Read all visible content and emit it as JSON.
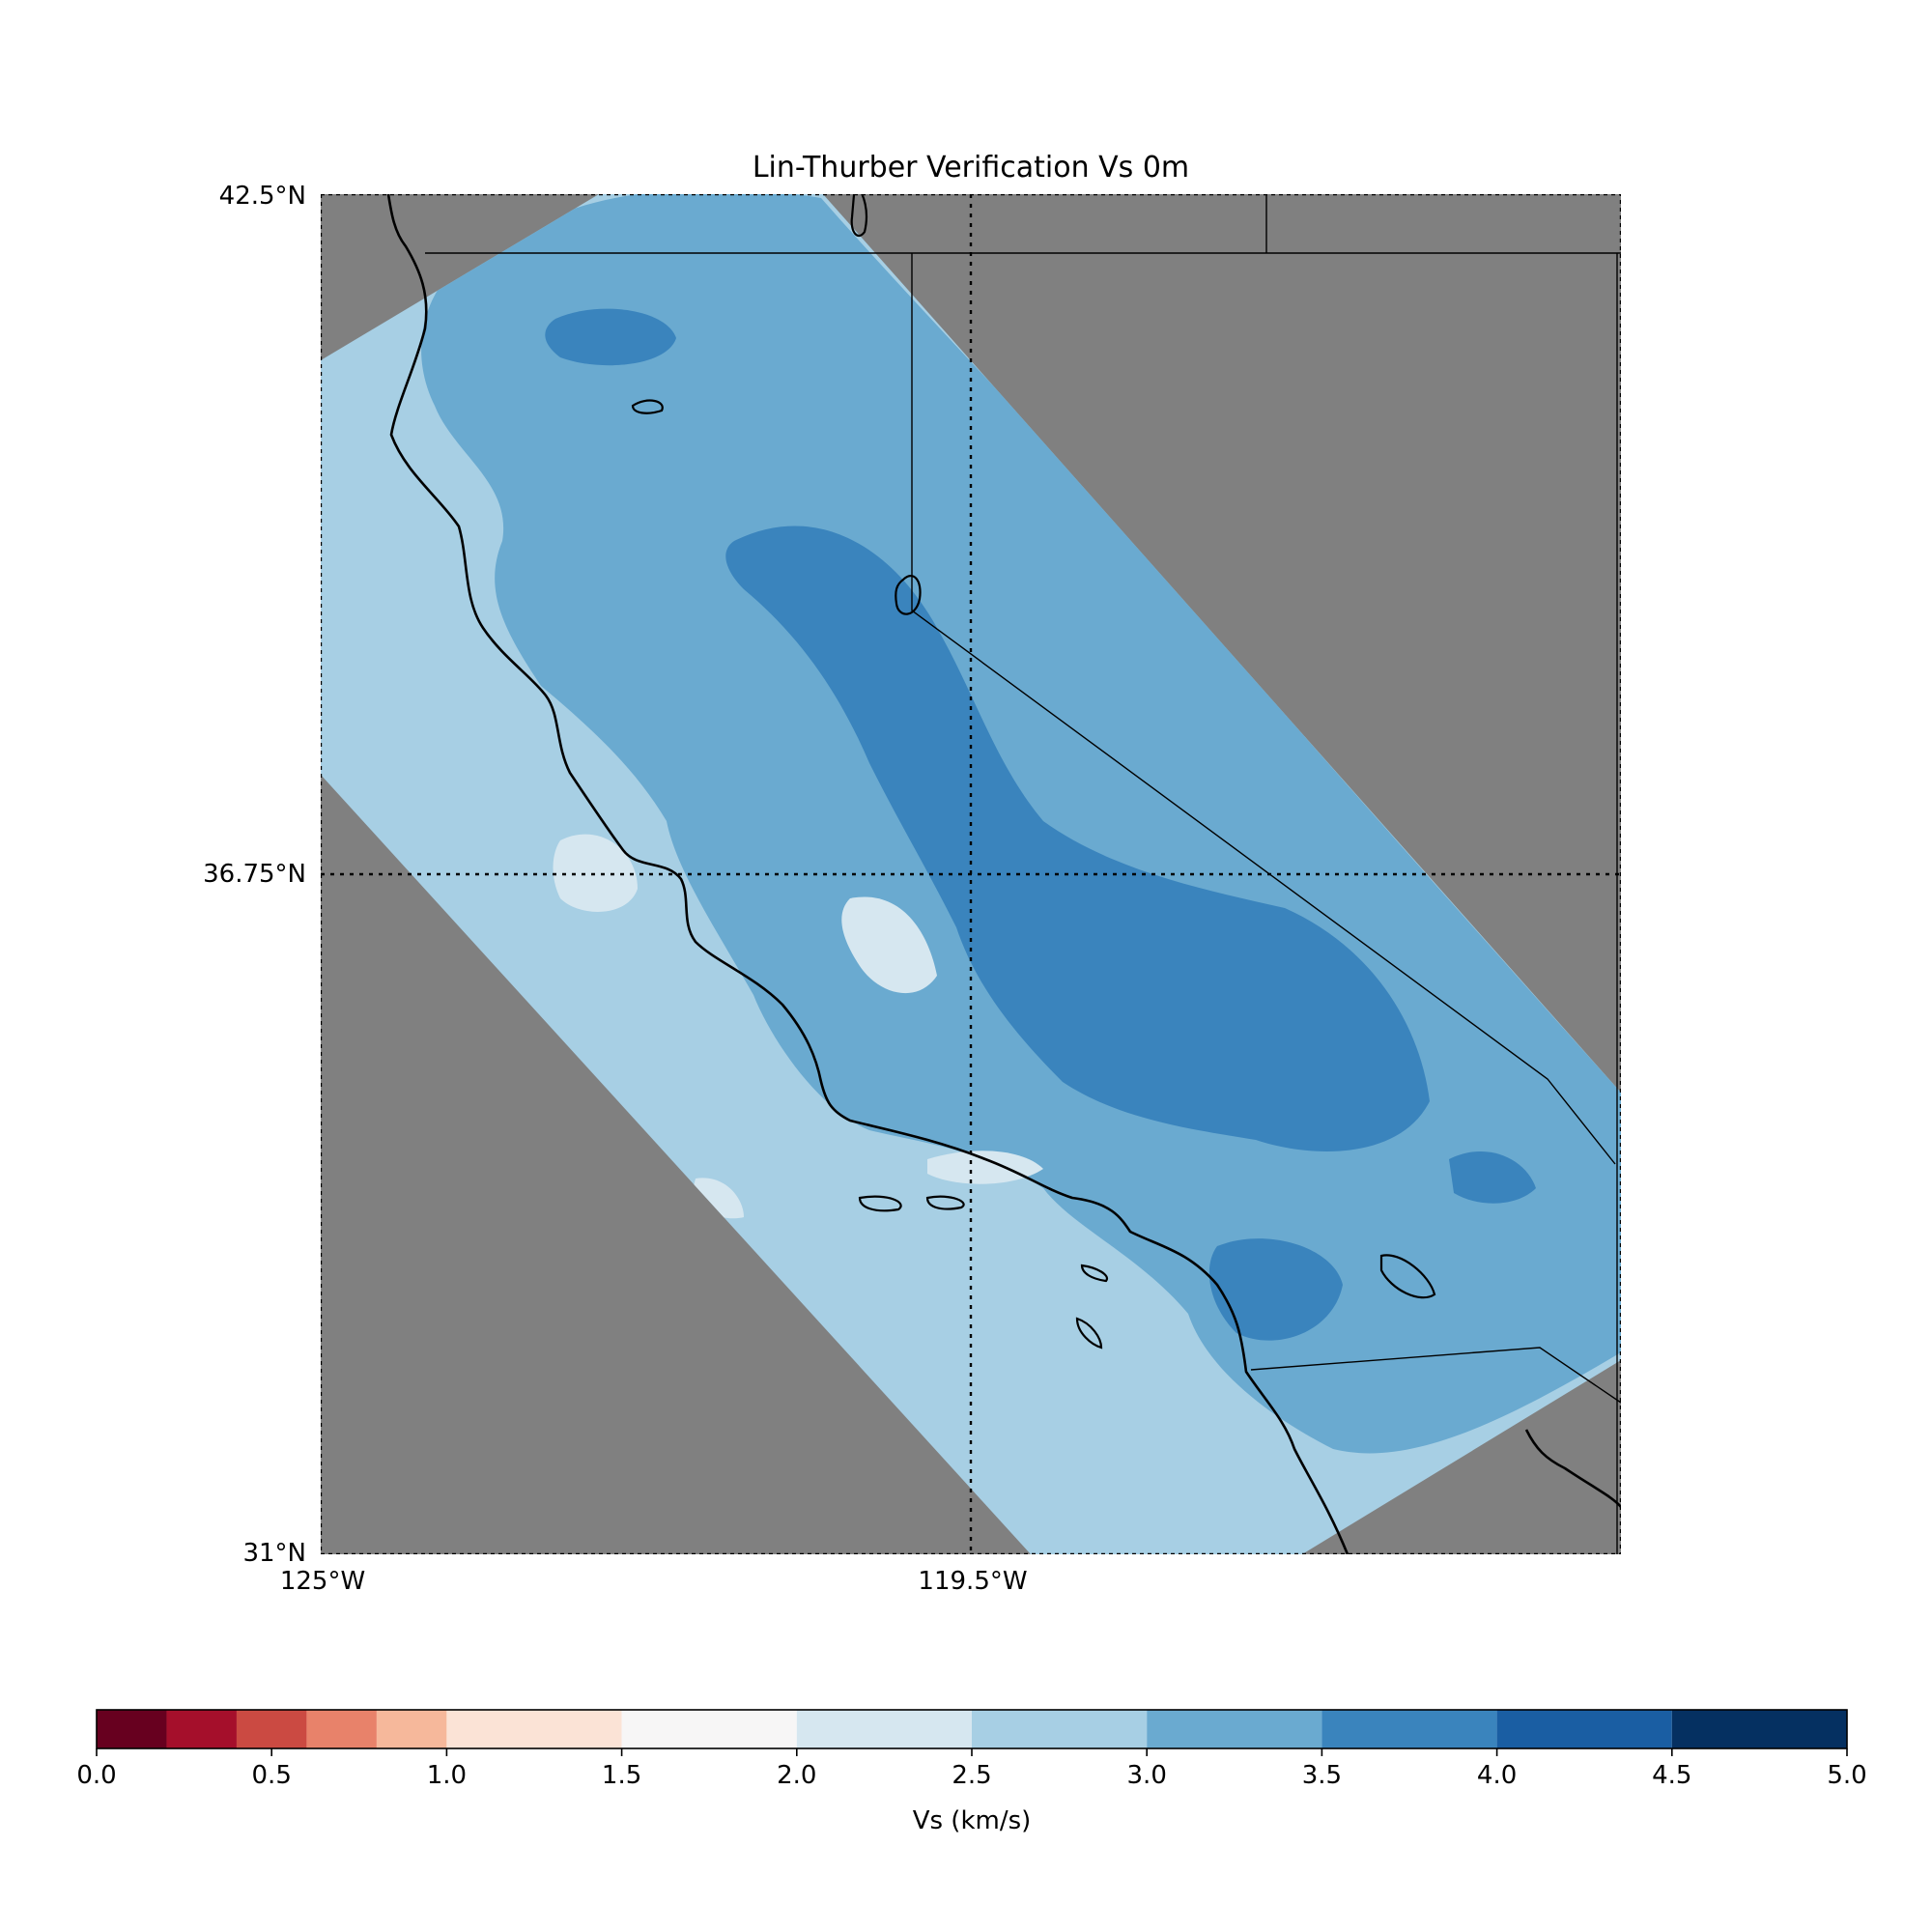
{
  "title": "Lin-Thurber Verification Vs 0m",
  "map": {
    "lat_labels": [
      "42.5°N",
      "36.75°N",
      "31°N"
    ],
    "lon_labels": [
      "125°W",
      "119.5°W"
    ],
    "lat_range": [
      31,
      42.5
    ],
    "lon_range": [
      -125,
      -114
    ],
    "land_color": "#808080",
    "grid_style": "dotted"
  },
  "colorbar": {
    "label": "Vs (km/s)",
    "range": [
      0.0,
      5.0
    ],
    "tick_labels": [
      "0.0",
      "0.5",
      "1.0",
      "1.5",
      "2.0",
      "2.5",
      "3.0",
      "3.5",
      "4.0",
      "4.5",
      "5.0"
    ],
    "bins": [
      {
        "from": 0.0,
        "to": 0.2,
        "color": "#67001f"
      },
      {
        "from": 0.2,
        "to": 0.4,
        "color": "#a50f2b"
      },
      {
        "from": 0.4,
        "to": 0.6,
        "color": "#cb4a42"
      },
      {
        "from": 0.6,
        "to": 0.8,
        "color": "#e8826a"
      },
      {
        "from": 0.8,
        "to": 1.0,
        "color": "#f6b89b"
      },
      {
        "from": 1.0,
        "to": 1.5,
        "color": "#fbe3d6"
      },
      {
        "from": 1.5,
        "to": 2.0,
        "color": "#f7f6f6"
      },
      {
        "from": 2.0,
        "to": 2.5,
        "color": "#d6e7f0"
      },
      {
        "from": 2.5,
        "to": 3.0,
        "color": "#a7cfe4"
      },
      {
        "from": 3.0,
        "to": 3.5,
        "color": "#6aaad0"
      },
      {
        "from": 3.5,
        "to": 4.0,
        "color": "#3a84bd"
      },
      {
        "from": 4.0,
        "to": 4.5,
        "color": "#1a5ea3"
      },
      {
        "from": 4.5,
        "to": 5.0,
        "color": "#053061"
      }
    ]
  }
}
